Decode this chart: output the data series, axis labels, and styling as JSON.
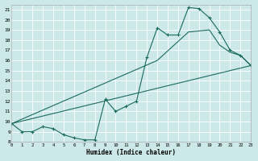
{
  "xlabel": "Humidex (Indice chaleur)",
  "bg_color": "#cce8e8",
  "grid_color": "#b8d8d8",
  "line_color": "#1a6b5e",
  "xlim": [
    0,
    23
  ],
  "ylim": [
    8,
    21.5
  ],
  "yticks": [
    8,
    9,
    10,
    11,
    12,
    13,
    14,
    15,
    16,
    17,
    18,
    19,
    20,
    21
  ],
  "xticks": [
    0,
    1,
    2,
    3,
    4,
    5,
    6,
    7,
    8,
    9,
    10,
    11,
    12,
    13,
    14,
    15,
    16,
    17,
    18,
    19,
    20,
    21,
    22,
    23
  ],
  "line1_x": [
    0,
    1,
    2,
    3,
    4,
    5,
    6,
    7,
    8,
    9,
    10,
    11,
    12,
    13,
    14,
    15,
    16,
    17,
    18,
    19,
    20,
    21,
    22,
    23
  ],
  "line1_y": [
    9.8,
    9.0,
    9.0,
    9.5,
    9.3,
    8.7,
    8.4,
    8.2,
    8.2,
    12.2,
    11.0,
    11.5,
    12.0,
    16.3,
    19.2,
    18.5,
    18.5,
    21.2,
    21.1,
    20.2,
    18.8,
    17.0,
    16.5,
    15.5
  ],
  "line2_x": [
    0,
    23
  ],
  "line2_y": [
    9.8,
    15.5
  ],
  "line3_x": [
    0,
    14,
    17,
    19,
    20,
    21,
    22,
    23
  ],
  "line3_y": [
    9.8,
    16.0,
    18.8,
    19.0,
    17.5,
    16.8,
    16.5,
    15.5
  ]
}
